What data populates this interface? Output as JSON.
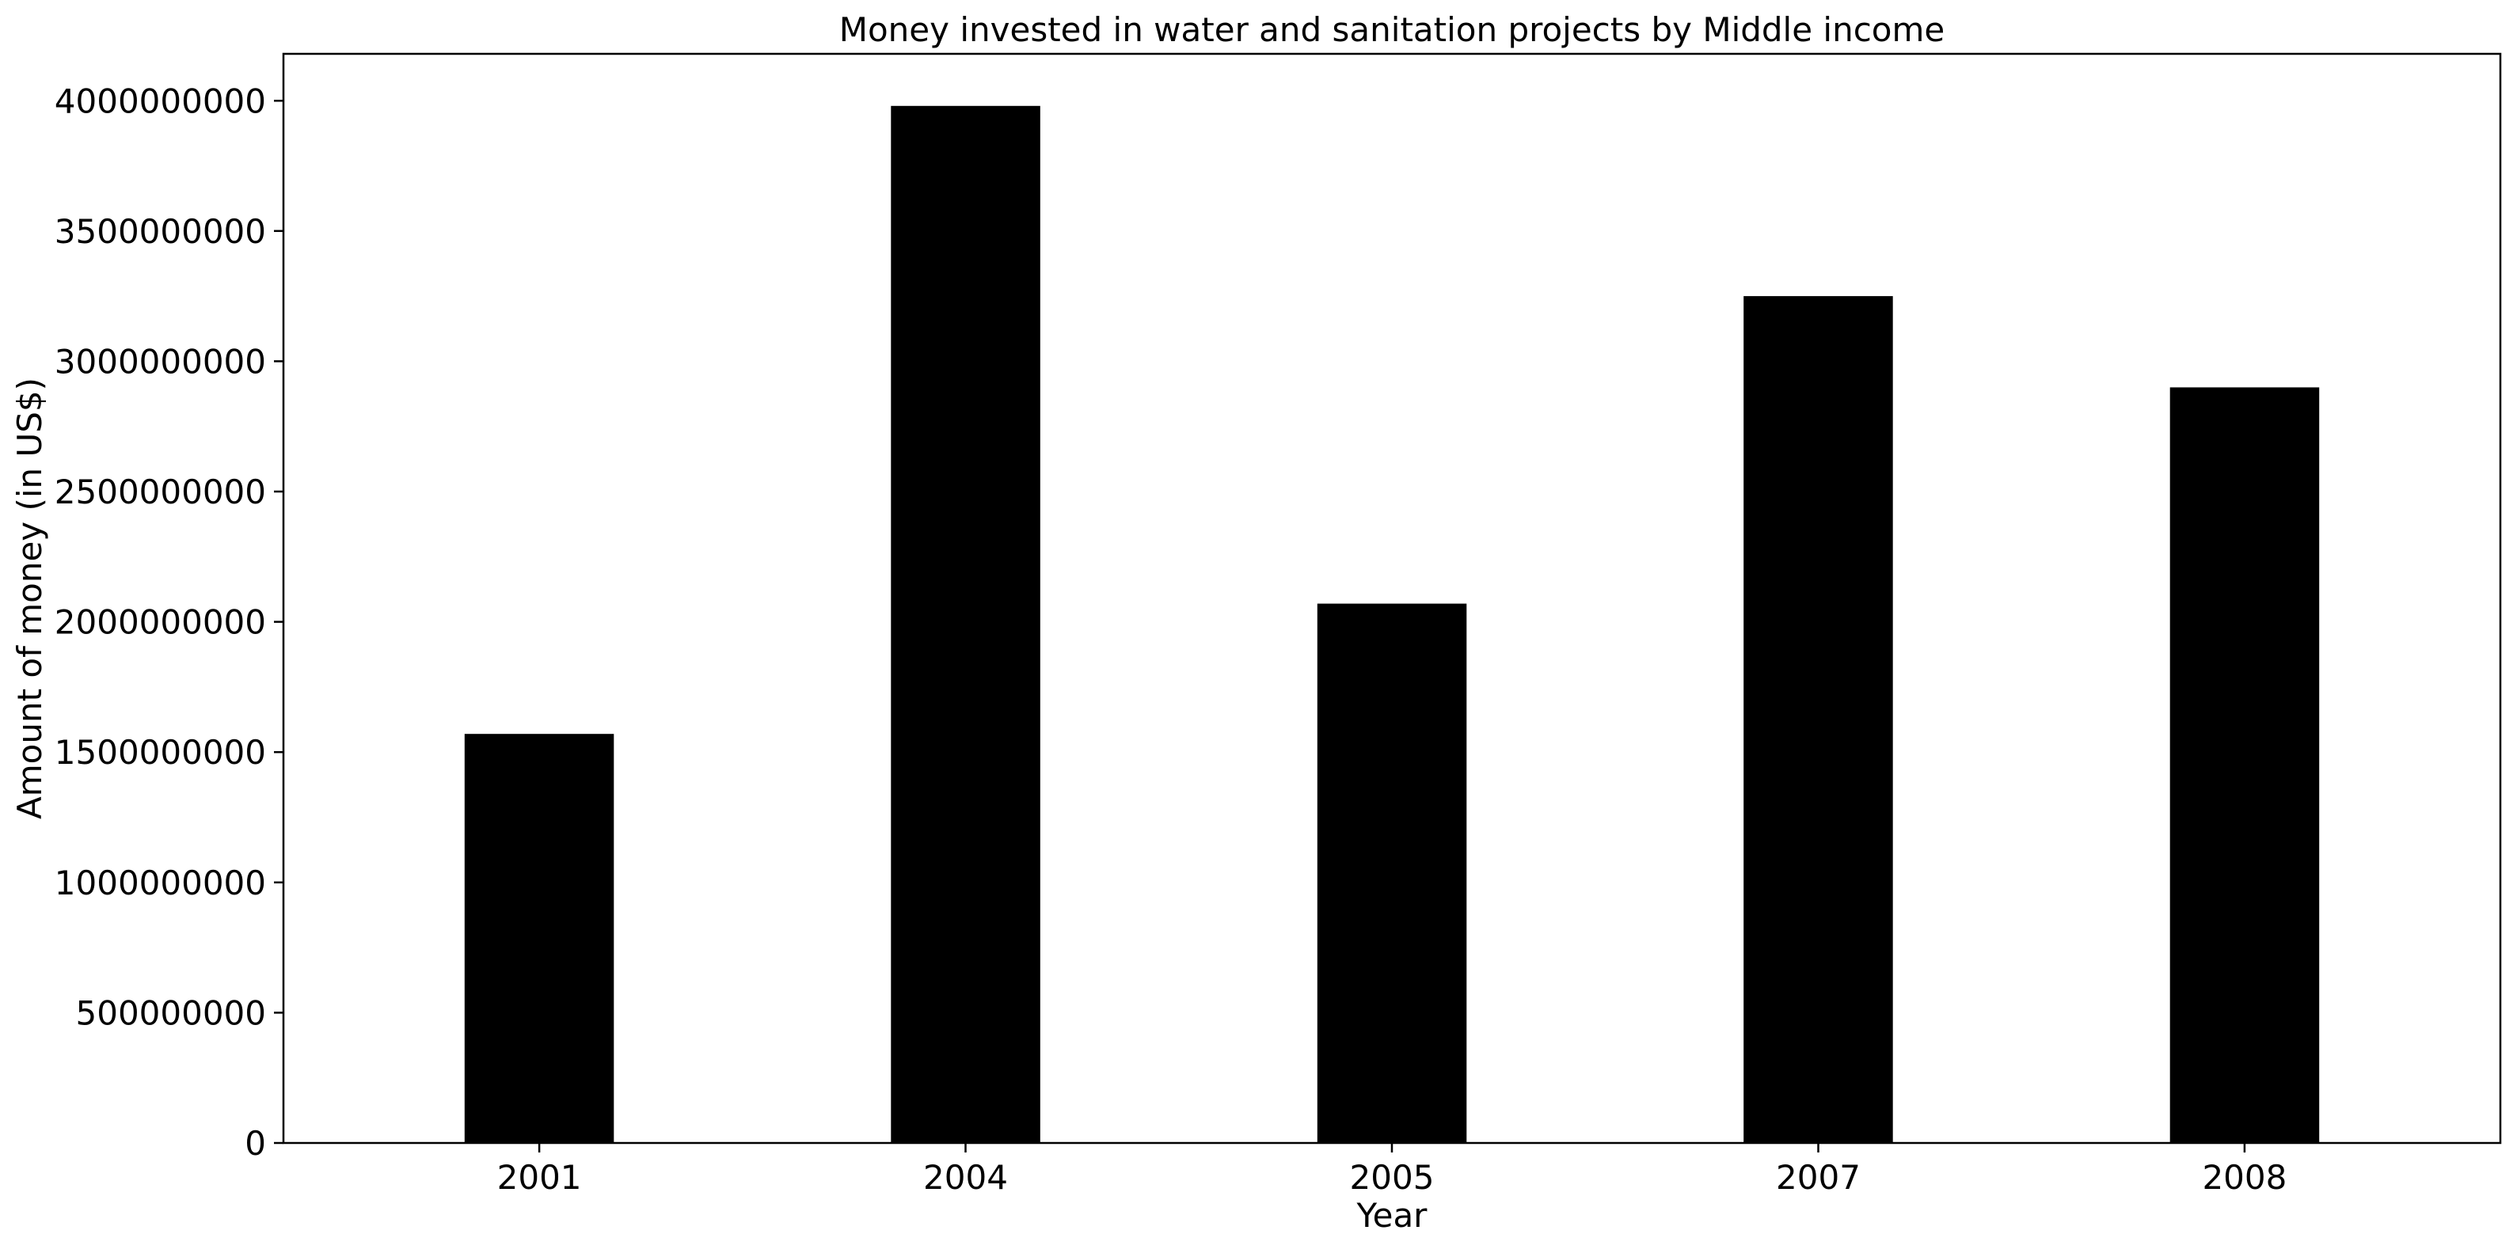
{
  "chart_data": {
    "type": "bar",
    "title": "Money invested in water and sanitation projects by Middle income",
    "xlabel": "Year",
    "ylabel": "Amount of money (in US$)",
    "categories": [
      "2001",
      "2004",
      "2005",
      "2007",
      "2008"
    ],
    "series": [
      {
        "values": [
          1570000000,
          3980000000,
          2070000000,
          3250000000,
          2900000000
        ]
      }
    ],
    "ylim": [
      0,
      4180000000
    ],
    "yticks": [
      0,
      500000000,
      1000000000,
      1500000000,
      2000000000,
      2500000000,
      3000000000,
      3500000000,
      4000000000
    ],
    "ytick_labels": [
      "0",
      "500000000",
      "1000000000",
      "1500000000",
      "2000000000",
      "2500000000",
      "3000000000",
      "3500000000",
      "4000000000"
    ],
    "grid": false,
    "legend": "none",
    "bar_color": "#000000"
  }
}
